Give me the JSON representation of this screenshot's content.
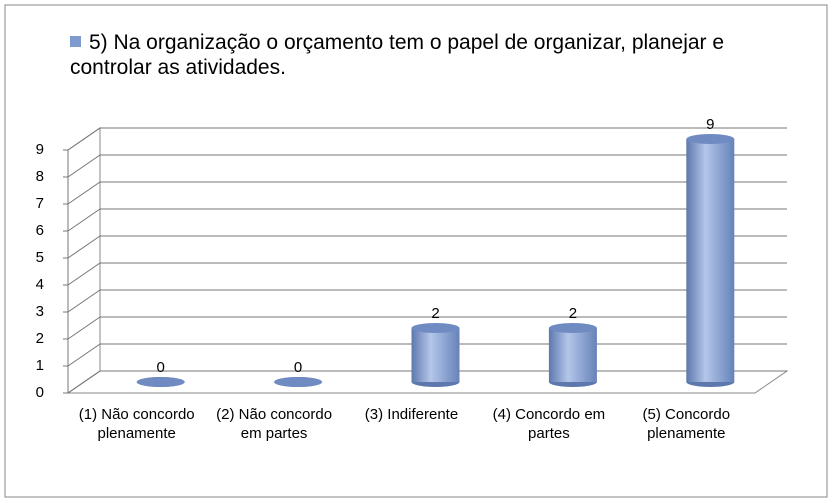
{
  "chart_data": {
    "type": "bar3d",
    "categories": [
      "(1) Não concordo plenamente",
      "(2) Não concordo em partes",
      "(3) Indiferente",
      "(4) Concordo em partes",
      "(5) Concordo plenamente"
    ],
    "series": [
      {
        "name": "5)  Na organização o orçamento tem o papel de organizar, planejar e controlar as atividades.",
        "color": "#7f9acd",
        "values": [
          0,
          0,
          2,
          2,
          9
        ]
      }
    ],
    "ylim": [
      0,
      9
    ],
    "yticks": [
      0,
      1,
      2,
      3,
      4,
      5,
      6,
      7,
      8,
      9
    ],
    "grid": true,
    "legend": "top",
    "data_labels": true
  }
}
